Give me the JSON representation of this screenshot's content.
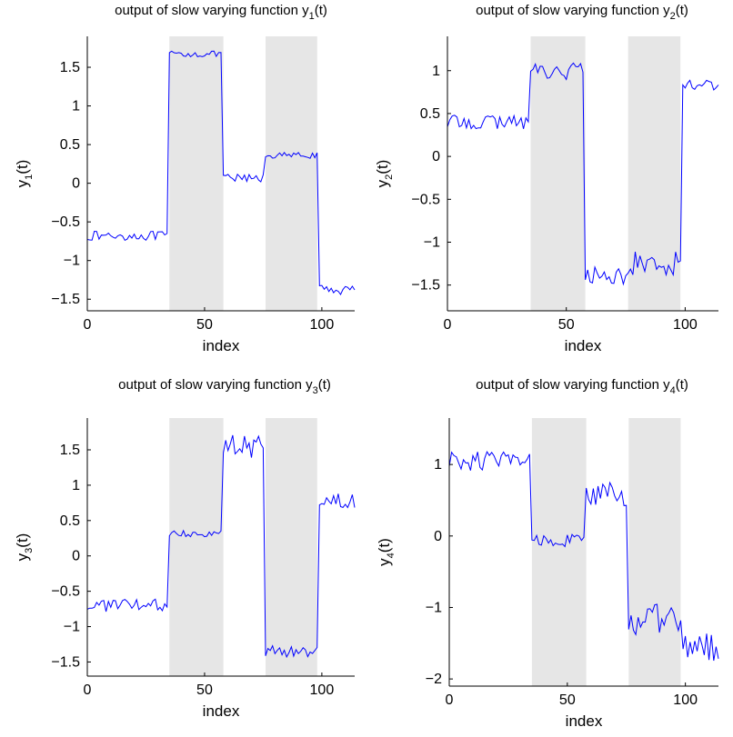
{
  "chart_data": [
    {
      "type": "line",
      "title_prefix": "output of slow varying function y",
      "title_sub": "1",
      "title_suffix": "(t)",
      "xlabel": "index",
      "ylabel_prefix": "y",
      "ylabel_sub": "1",
      "ylabel_suffix": "(t)",
      "xlim": [
        0,
        114
      ],
      "ylim": [
        -1.65,
        1.9
      ],
      "xticks": [
        0,
        50,
        100
      ],
      "yticks": [
        -1.5,
        -1,
        -0.5,
        0,
        0.5,
        1,
        1.5
      ],
      "ytick_labels": [
        "−1.5",
        "−1",
        "−0.5",
        "0",
        "0.5",
        "1",
        "1.5"
      ],
      "shaded_regions": [
        [
          35,
          58
        ],
        [
          76,
          98
        ]
      ],
      "series_color": "#0000ff",
      "shade_color": "#e6e6e6",
      "segments": [
        {
          "from": 0,
          "to": 34,
          "level": -0.68,
          "noise": 0.06
        },
        {
          "from": 35,
          "to": 57,
          "level": 1.67,
          "noise": 0.04
        },
        {
          "from": 58,
          "to": 75,
          "level": 0.06,
          "noise": 0.06
        },
        {
          "from": 76,
          "to": 98,
          "level": 0.36,
          "noise": 0.04
        },
        {
          "from": 99,
          "to": 114,
          "level": -1.38,
          "noise": 0.06
        }
      ]
    },
    {
      "type": "line",
      "title_prefix": "output of slow varying function y",
      "title_sub": "2",
      "title_suffix": "(t)",
      "xlabel": "index",
      "ylabel_prefix": "y",
      "ylabel_sub": "2",
      "ylabel_suffix": "(t)",
      "xlim": [
        0,
        114
      ],
      "ylim": [
        -1.8,
        1.4
      ],
      "xticks": [
        0,
        50,
        100
      ],
      "yticks": [
        -1.5,
        -1,
        -0.5,
        0,
        0.5,
        1
      ],
      "ytick_labels": [
        "−1.5",
        "−1",
        "−0.5",
        "0",
        "0.5",
        "1"
      ],
      "shaded_regions": [
        [
          35,
          58
        ],
        [
          76,
          98
        ]
      ],
      "series_color": "#0000ff",
      "shade_color": "#e6e6e6",
      "segments": [
        {
          "from": 0,
          "to": 34,
          "level": 0.4,
          "noise": 0.08
        },
        {
          "from": 35,
          "to": 57,
          "level": 1.0,
          "noise": 0.12
        },
        {
          "from": 58,
          "to": 75,
          "level": -1.4,
          "noise": 0.12
        },
        {
          "from": 76,
          "to": 98,
          "level": -1.25,
          "noise": 0.15
        },
        {
          "from": 99,
          "to": 114,
          "level": 0.85,
          "noise": 0.08
        }
      ]
    },
    {
      "type": "line",
      "title_prefix": "output of slow varying function y",
      "title_sub": "3",
      "title_suffix": "(t)",
      "xlabel": "index",
      "ylabel_prefix": "y",
      "ylabel_sub": "3",
      "ylabel_suffix": "(t)",
      "xlim": [
        0,
        114
      ],
      "ylim": [
        -1.7,
        1.95
      ],
      "xticks": [
        0,
        50,
        100
      ],
      "yticks": [
        -1.5,
        -1,
        -0.5,
        0,
        0.5,
        1,
        1.5
      ],
      "ytick_labels": [
        "−1.5",
        "−1",
        "−0.5",
        "0",
        "0.5",
        "1",
        "1.5"
      ],
      "shaded_regions": [
        [
          35,
          58
        ],
        [
          76,
          98
        ]
      ],
      "series_color": "#0000ff",
      "shade_color": "#e6e6e6",
      "segments": [
        {
          "from": 0,
          "to": 34,
          "level": -0.7,
          "noise": 0.09
        },
        {
          "from": 35,
          "to": 57,
          "level": 0.32,
          "noise": 0.05
        },
        {
          "from": 58,
          "to": 75,
          "level": 1.55,
          "noise": 0.18
        },
        {
          "from": 76,
          "to": 98,
          "level": -1.35,
          "noise": 0.08
        },
        {
          "from": 99,
          "to": 114,
          "level": 0.8,
          "noise": 0.12
        }
      ]
    },
    {
      "type": "line",
      "title_prefix": "output of slow varying function y",
      "title_sub": "4",
      "title_suffix": "(t)",
      "xlabel": "index",
      "ylabel_prefix": "y",
      "ylabel_sub": "4",
      "ylabel_suffix": "(t)",
      "xlim": [
        0,
        114
      ],
      "ylim": [
        -2.1,
        1.65
      ],
      "xticks": [
        0,
        50,
        100
      ],
      "yticks": [
        -2,
        -1,
        0,
        1
      ],
      "ytick_labels": [
        "−2",
        "−1",
        "0",
        "1"
      ],
      "shaded_regions": [
        [
          35,
          58
        ],
        [
          76,
          98
        ]
      ],
      "series_color": "#0000ff",
      "shade_color": "#e6e6e6",
      "segments": [
        {
          "from": 0,
          "to": 34,
          "level": 1.05,
          "noise": 0.15
        },
        {
          "from": 35,
          "to": 57,
          "level": -0.05,
          "noise": 0.1
        },
        {
          "from": 58,
          "to": 75,
          "level": 0.55,
          "noise": 0.2
        },
        {
          "from": 76,
          "to": 98,
          "level": -1.2,
          "noise": 0.25
        },
        {
          "from": 99,
          "to": 114,
          "level": -1.55,
          "noise": 0.2
        }
      ]
    }
  ]
}
